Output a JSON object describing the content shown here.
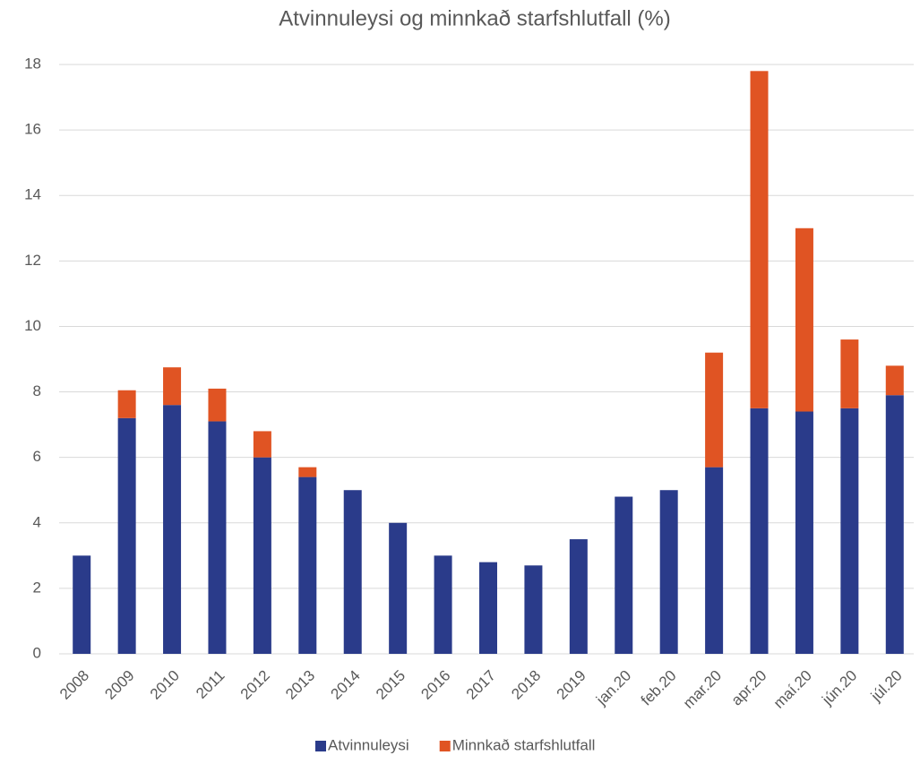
{
  "chart_data": {
    "type": "stacked_bar",
    "title": "Atvinnuleysi og minnkað starfshlutfall (%)",
    "categories": [
      "2008",
      "2009",
      "2010",
      "2011",
      "2012",
      "2013",
      "2014",
      "2015",
      "2016",
      "2017",
      "2018",
      "2019",
      "jan.20",
      "feb.20",
      "mar.20",
      "apr.20",
      "maí.20",
      "jún.20",
      "júl.20"
    ],
    "series": [
      {
        "name": "Atvinnuleysi",
        "color": "#2a3b8a",
        "values": [
          3,
          7.2,
          7.6,
          7.1,
          6.0,
          5.4,
          5.0,
          4.0,
          3.0,
          2.8,
          2.7,
          3.5,
          4.8,
          5.0,
          5.7,
          7.5,
          7.4,
          7.5,
          7.9
        ]
      },
      {
        "name": "Minnkað starfshlutfall",
        "color": "#e05423",
        "values": [
          0,
          0.85,
          1.15,
          1.0,
          0.8,
          0.3,
          0,
          0,
          0,
          0,
          0,
          0,
          0,
          0,
          3.5,
          10.3,
          5.6,
          2.1,
          0.9
        ]
      }
    ],
    "ylim": [
      0,
      18
    ],
    "yticks": [
      0,
      2,
      4,
      6,
      8,
      10,
      12,
      14,
      16,
      18
    ],
    "grid": true,
    "legend": "bottom"
  }
}
